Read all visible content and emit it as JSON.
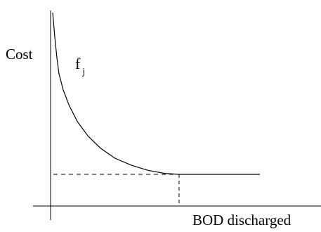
{
  "chart_data": {
    "type": "line",
    "title": "",
    "xlabel": "BOD discharged",
    "ylabel": "Cost",
    "xlim": [
      0,
      1
    ],
    "ylim": [
      0,
      1
    ],
    "grid": false,
    "curve": {
      "label_base": "f",
      "label_sub": "j",
      "points": [
        {
          "x": 0.0,
          "y": 1.0
        },
        {
          "x": 0.01,
          "y": 0.88
        },
        {
          "x": 0.02,
          "y": 0.78
        },
        {
          "x": 0.03,
          "y": 0.7
        },
        {
          "x": 0.05,
          "y": 0.62
        },
        {
          "x": 0.08,
          "y": 0.54
        },
        {
          "x": 0.12,
          "y": 0.46
        },
        {
          "x": 0.17,
          "y": 0.39
        },
        {
          "x": 0.23,
          "y": 0.33
        },
        {
          "x": 0.3,
          "y": 0.28
        },
        {
          "x": 0.38,
          "y": 0.245
        },
        {
          "x": 0.46,
          "y": 0.22
        },
        {
          "x": 0.54,
          "y": 0.205
        },
        {
          "x": 0.61,
          "y": 0.2
        },
        {
          "x": 1.0,
          "y": 0.2
        }
      ]
    },
    "reference_point": {
      "x": 0.61,
      "y": 0.2,
      "style": "dashed"
    }
  }
}
